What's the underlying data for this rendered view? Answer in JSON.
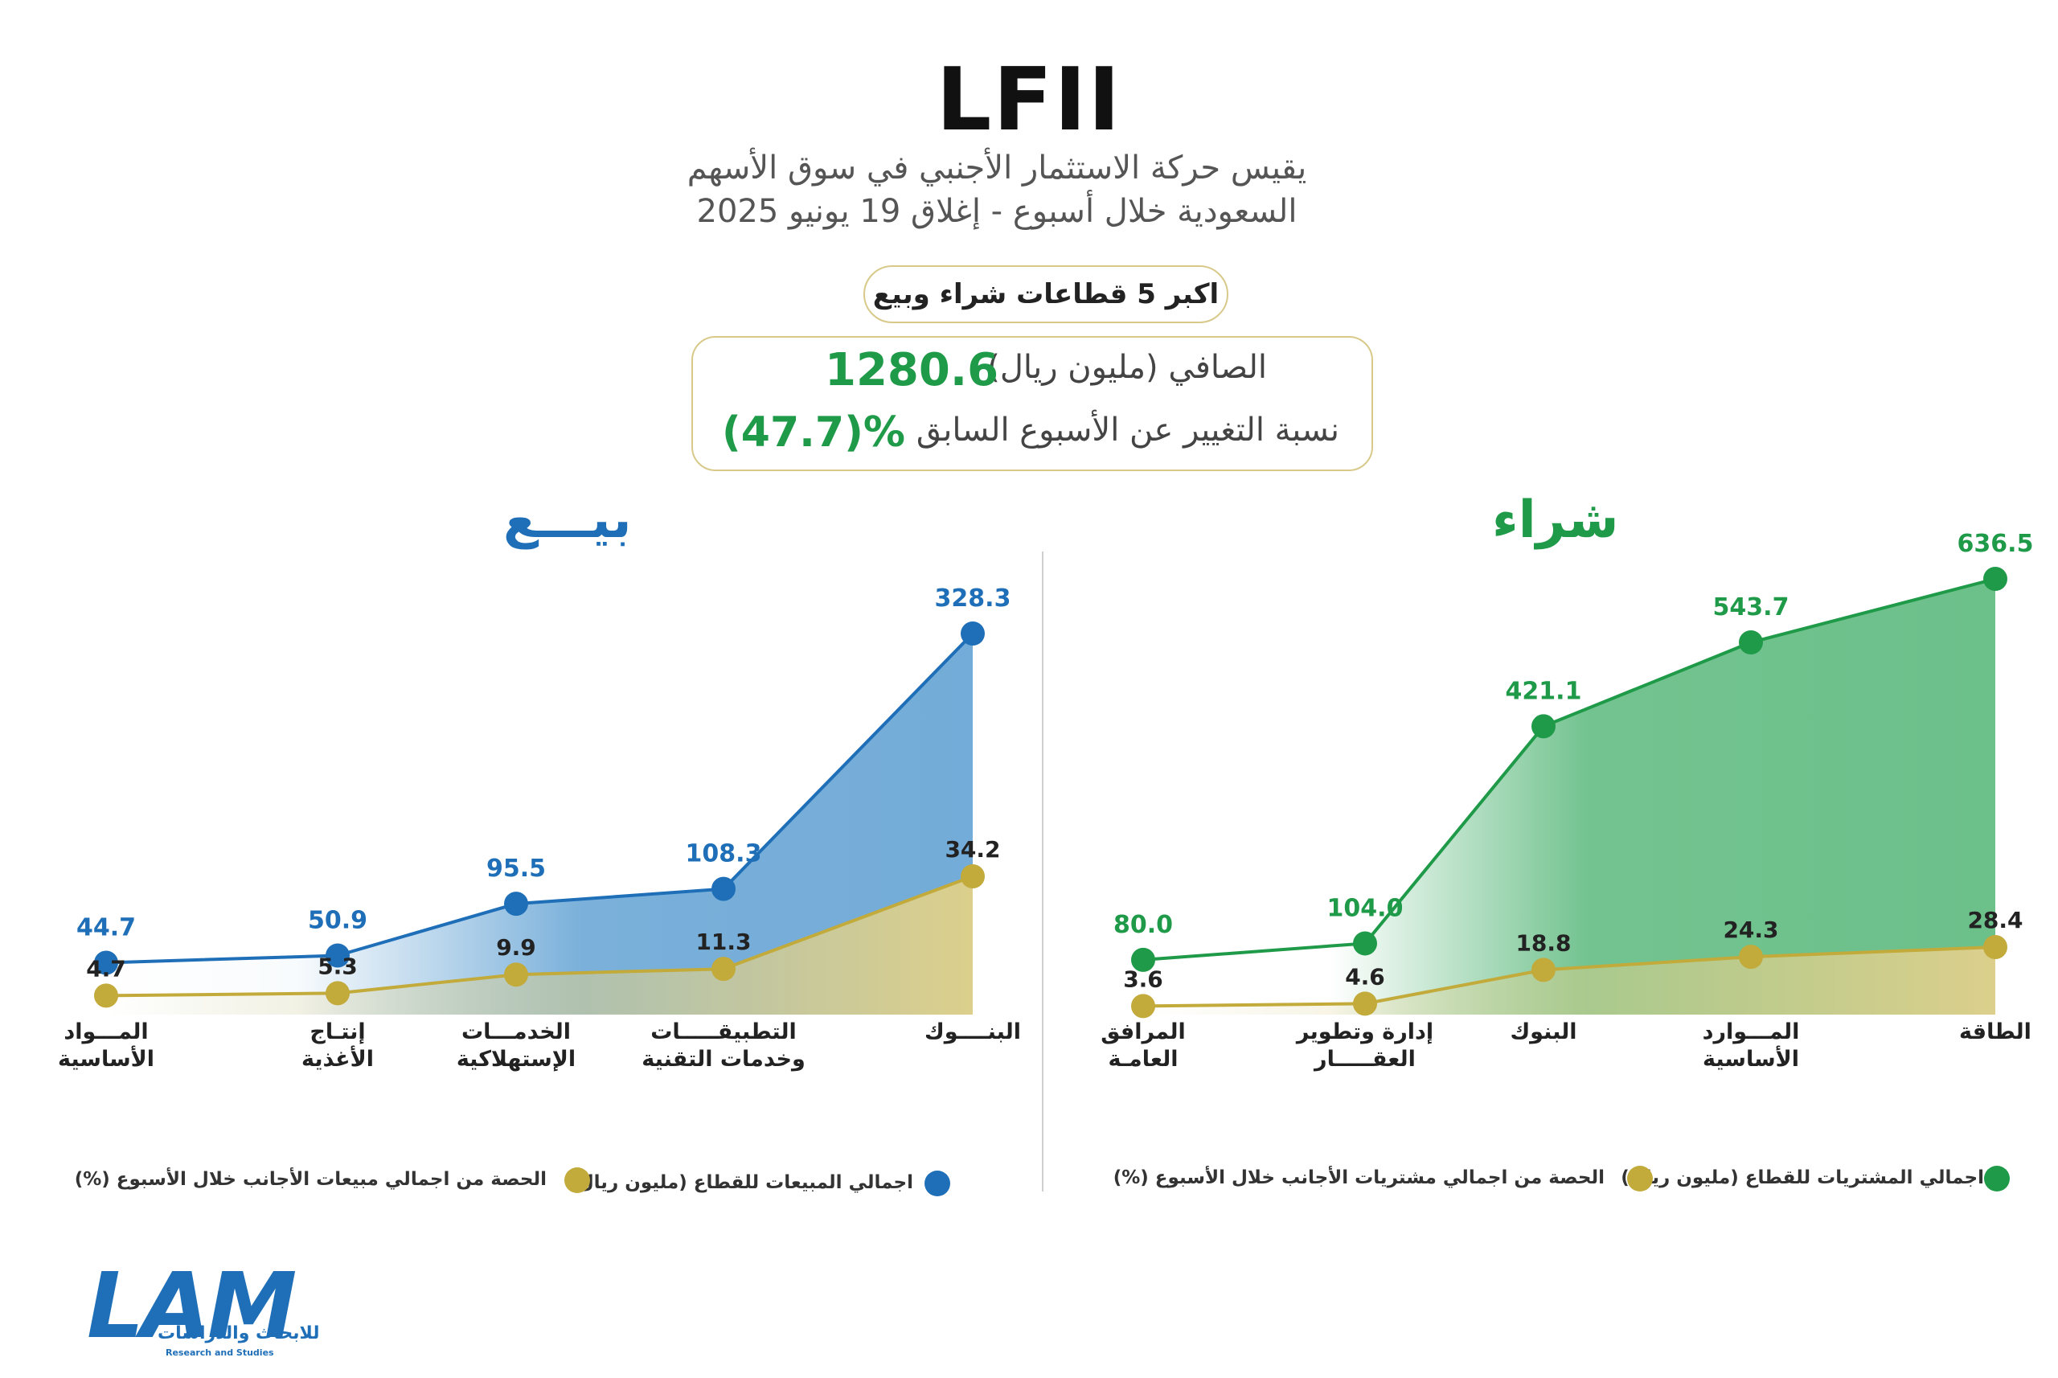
{
  "header": {
    "title": "LFII",
    "subtitle_line1": "يقيس حركة الاستثمار الأجنبي في سوق الأسهم",
    "subtitle_line2": "السعودية خلال أسبوع - إغلاق 19 يونيو 2025",
    "pill": "اكبر 5 قطاعات شراء وبيع"
  },
  "summary": {
    "net_label": "الصافي (مليون ريال)",
    "net_value": "1280.6",
    "change_label": "نسبة التغيير عن الأسبوع السابق",
    "change_value": "(47.7)%"
  },
  "colors": {
    "buy": "#1f9a48",
    "sell": "#1f6fb8",
    "share": "#c2aa3b",
    "buy_fill": "#6cc08a",
    "sell_fill": "#73acd8",
    "share_fill": "#dccf8c"
  },
  "chart_data": [
    {
      "type": "area",
      "title": "شراء",
      "categories": [
        "المرافق العامة",
        "إدارة وتطوير العقار",
        "البنوك",
        "الموارد الأساسية",
        "الطاقة"
      ],
      "category_lines": [
        [
          "المرافق",
          "العامـة"
        ],
        [
          "إدارة وتطوير",
          "العقـــــار"
        ],
        [
          "البنوك"
        ],
        [
          "المـــوارد",
          "الأساسية"
        ],
        [
          "الطاقة"
        ]
      ],
      "series": [
        {
          "name": "اجمالي المشتريات للقطاع (مليون ريال)",
          "values": [
            80.0,
            104.0,
            421.1,
            543.7,
            636.5
          ],
          "labels": [
            "80.0",
            "104.0",
            "421.1",
            "543.7",
            "636.5"
          ]
        },
        {
          "name": "الحصة من اجمالي مشتريات الأجانب خلال الأسبوع (%)",
          "values": [
            3.6,
            4.6,
            18.8,
            24.3,
            28.4
          ],
          "labels": [
            "3.6",
            "4.6",
            "18.8",
            "24.3",
            "28.4"
          ]
        }
      ]
    },
    {
      "type": "area",
      "title": "بيـــع",
      "categories": [
        "المواد الأساسية",
        "إنتاج الأغذية",
        "الخدمات الإستهلاكية",
        "التطبيقات وخدمات التقنية",
        "البنوك"
      ],
      "category_lines": [
        [
          "المـــواد",
          "الأساسية"
        ],
        [
          "إنتـاج",
          "الأغذية"
        ],
        [
          "الخدمـــات",
          "الإستهلاكية"
        ],
        [
          "التطبيقـــــات",
          "وخدمات التقنية"
        ],
        [
          "البنــــوك"
        ]
      ],
      "series": [
        {
          "name": "اجمالي المبيعات للقطاع (مليون ريال)",
          "values": [
            44.7,
            50.9,
            95.5,
            108.3,
            328.3
          ],
          "labels": [
            "44.7",
            "50.9",
            "95.5",
            "108.3",
            "328.3"
          ]
        },
        {
          "name": "الحصة من اجمالي مبيعات الأجانب خلال الأسبوع (%)",
          "values": [
            4.7,
            5.3,
            9.9,
            11.3,
            34.2
          ],
          "labels": [
            "4.7",
            "5.3",
            "9.9",
            "11.3",
            "34.2"
          ]
        }
      ]
    }
  ],
  "legend": {
    "buy_total": "اجمالي المشتريات للقطاع (مليون ريال)",
    "buy_share": "الحصة من اجمالي مشتريات الأجانب خلال الأسبوع (%)",
    "sell_total": "اجمالي المبيعات للقطاع (مليون ريال)",
    "sell_share": "الحصة من اجمالي مبيعات الأجانب خلال الأسبوع (%)"
  },
  "logo": {
    "name": "LAM",
    "arabic": "للابحاث والدراسات",
    "english": "Research and Studies"
  }
}
